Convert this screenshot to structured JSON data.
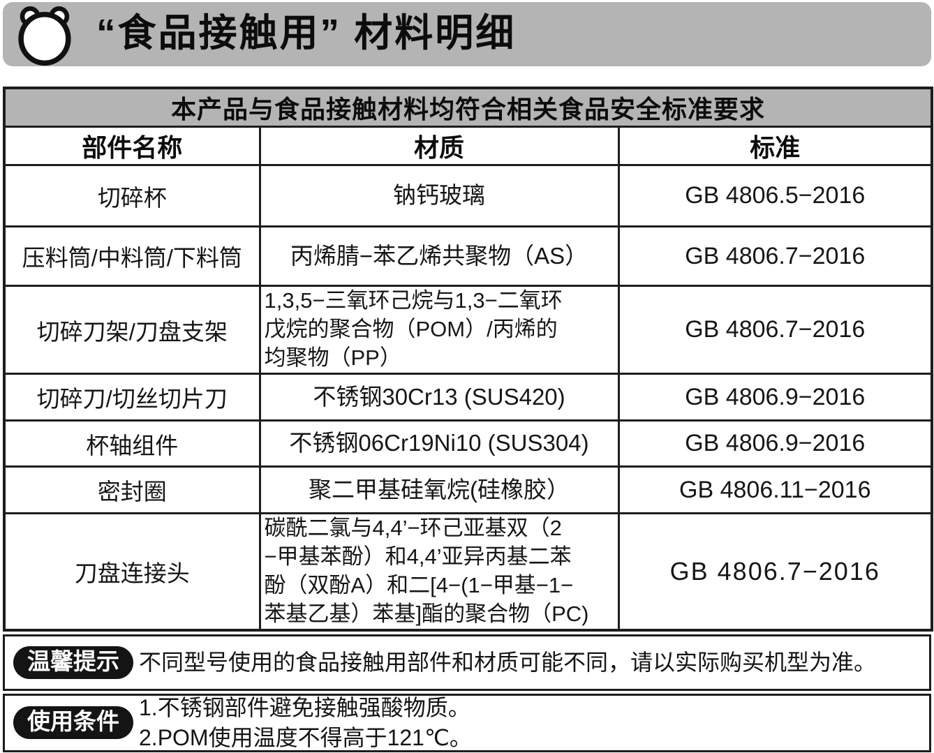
{
  "header": {
    "title": "“食品接触用” 材料明细",
    "icon": "bear-icon"
  },
  "table": {
    "banner": "本产品与食品接触材料均符合相关食品安全标准要求",
    "columns": [
      "部件名称",
      "材质",
      "标准"
    ],
    "rows": [
      {
        "part": "切碎杯",
        "material": "钠钙玻璃",
        "standard": "GB 4806.5−2016"
      },
      {
        "part": "压料筒/中料筒/下料筒",
        "material": "丙烯腈−苯乙烯共聚物（AS）",
        "standard": "GB 4806.7−2016"
      },
      {
        "part": "切碎刀架/刀盘支架",
        "material": [
          "1,3,5−三氧环己烷与1,3−二氧环",
          "戊烷的聚合物（POM）/丙烯的",
          "均聚物（PP）"
        ],
        "standard": "GB 4806.7−2016"
      },
      {
        "part": "切碎刀/切丝切片刀",
        "material": "不锈钢30Cr13 (SUS420)",
        "standard": "GB 4806.9−2016"
      },
      {
        "part": "杯轴组件",
        "material": "不锈钢06Cr19Ni10 (SUS304)",
        "standard": "GB 4806.9−2016"
      },
      {
        "part": "密封圈",
        "material": "聚二甲基硅氧烷(硅橡胶）",
        "standard": "GB 4806.11−2016"
      },
      {
        "part": "刀盘连接头",
        "material": [
          "碳酰二氯与4,4’−环己亚基双（2",
          "−甲基苯酚）和4,4’亚异丙基二苯",
          "酚（双酚A）和二[4−(1−甲基−1−",
          "苯基乙基）苯基]酯的聚合物（PC)"
        ],
        "standard": "GB 4806.7−2016"
      }
    ]
  },
  "notes": [
    {
      "badge": "温馨提示",
      "lines": [
        "不同型号使用的食品接触用部件和材质可能不同，请以实际购买机型为准。"
      ]
    },
    {
      "badge": "使用条件",
      "lines": [
        "1.不锈钢部件避免接触强酸物质。",
        "2.POM使用温度不得高于121℃。"
      ]
    }
  ],
  "colors": {
    "bar_gray": "#b4b4b4",
    "border_black": "#1d1d1d",
    "badge_bg": "#141414",
    "badge_text": "#ffffff",
    "page_bg": "#ffffff"
  }
}
